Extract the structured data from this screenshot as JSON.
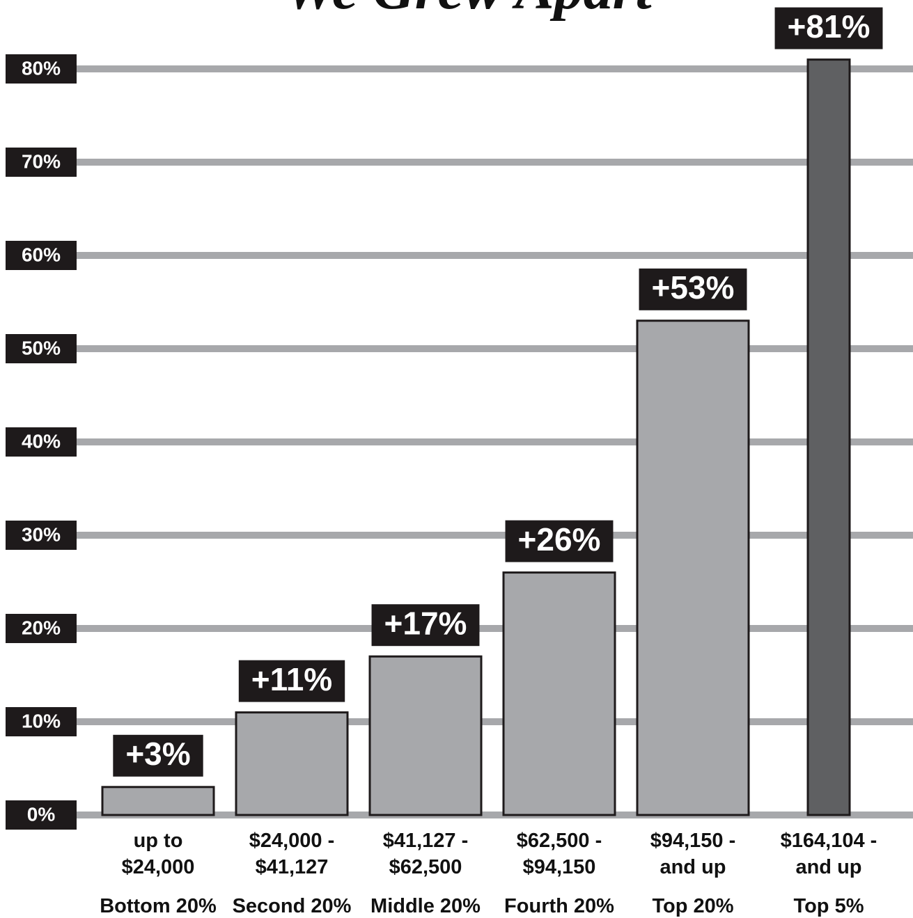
{
  "chart_data": {
    "type": "bar",
    "title": "We Grew Apart",
    "categories": [
      "Bottom 20%",
      "Second 20%",
      "Middle 20%",
      "Fourth 20%",
      "Top 20%",
      "Top 5%"
    ],
    "ranges": [
      [
        "up to",
        "$24,000"
      ],
      [
        "$24,000 -",
        "$41,127"
      ],
      [
        "$41,127 -",
        "$62,500"
      ],
      [
        "$62,500 -",
        "$94,150"
      ],
      [
        "$94,150 -",
        "and up"
      ],
      [
        "$164,104 -",
        "and up"
      ]
    ],
    "values": [
      3,
      11,
      17,
      26,
      53,
      81
    ],
    "value_labels": [
      "+3%",
      "+11%",
      "+17%",
      "+26%",
      "+53%",
      "+81%"
    ],
    "colors": [
      "#a7a8ab",
      "#a7a8ab",
      "#a7a8ab",
      "#a7a8ab",
      "#a7a8ab",
      "#5f6062"
    ],
    "ylim": [
      0,
      85
    ],
    "yticks": [
      {
        "value": 0,
        "label": "0%"
      },
      {
        "value": 10,
        "label": "10%"
      },
      {
        "value": 20,
        "label": "20%"
      },
      {
        "value": 30,
        "label": "30%"
      },
      {
        "value": 40,
        "label": "40%"
      },
      {
        "value": 50,
        "label": "50%"
      },
      {
        "value": 60,
        "label": "60%"
      },
      {
        "value": 70,
        "label": "70%"
      },
      {
        "value": 80,
        "label": "80%"
      }
    ],
    "grid": true
  }
}
